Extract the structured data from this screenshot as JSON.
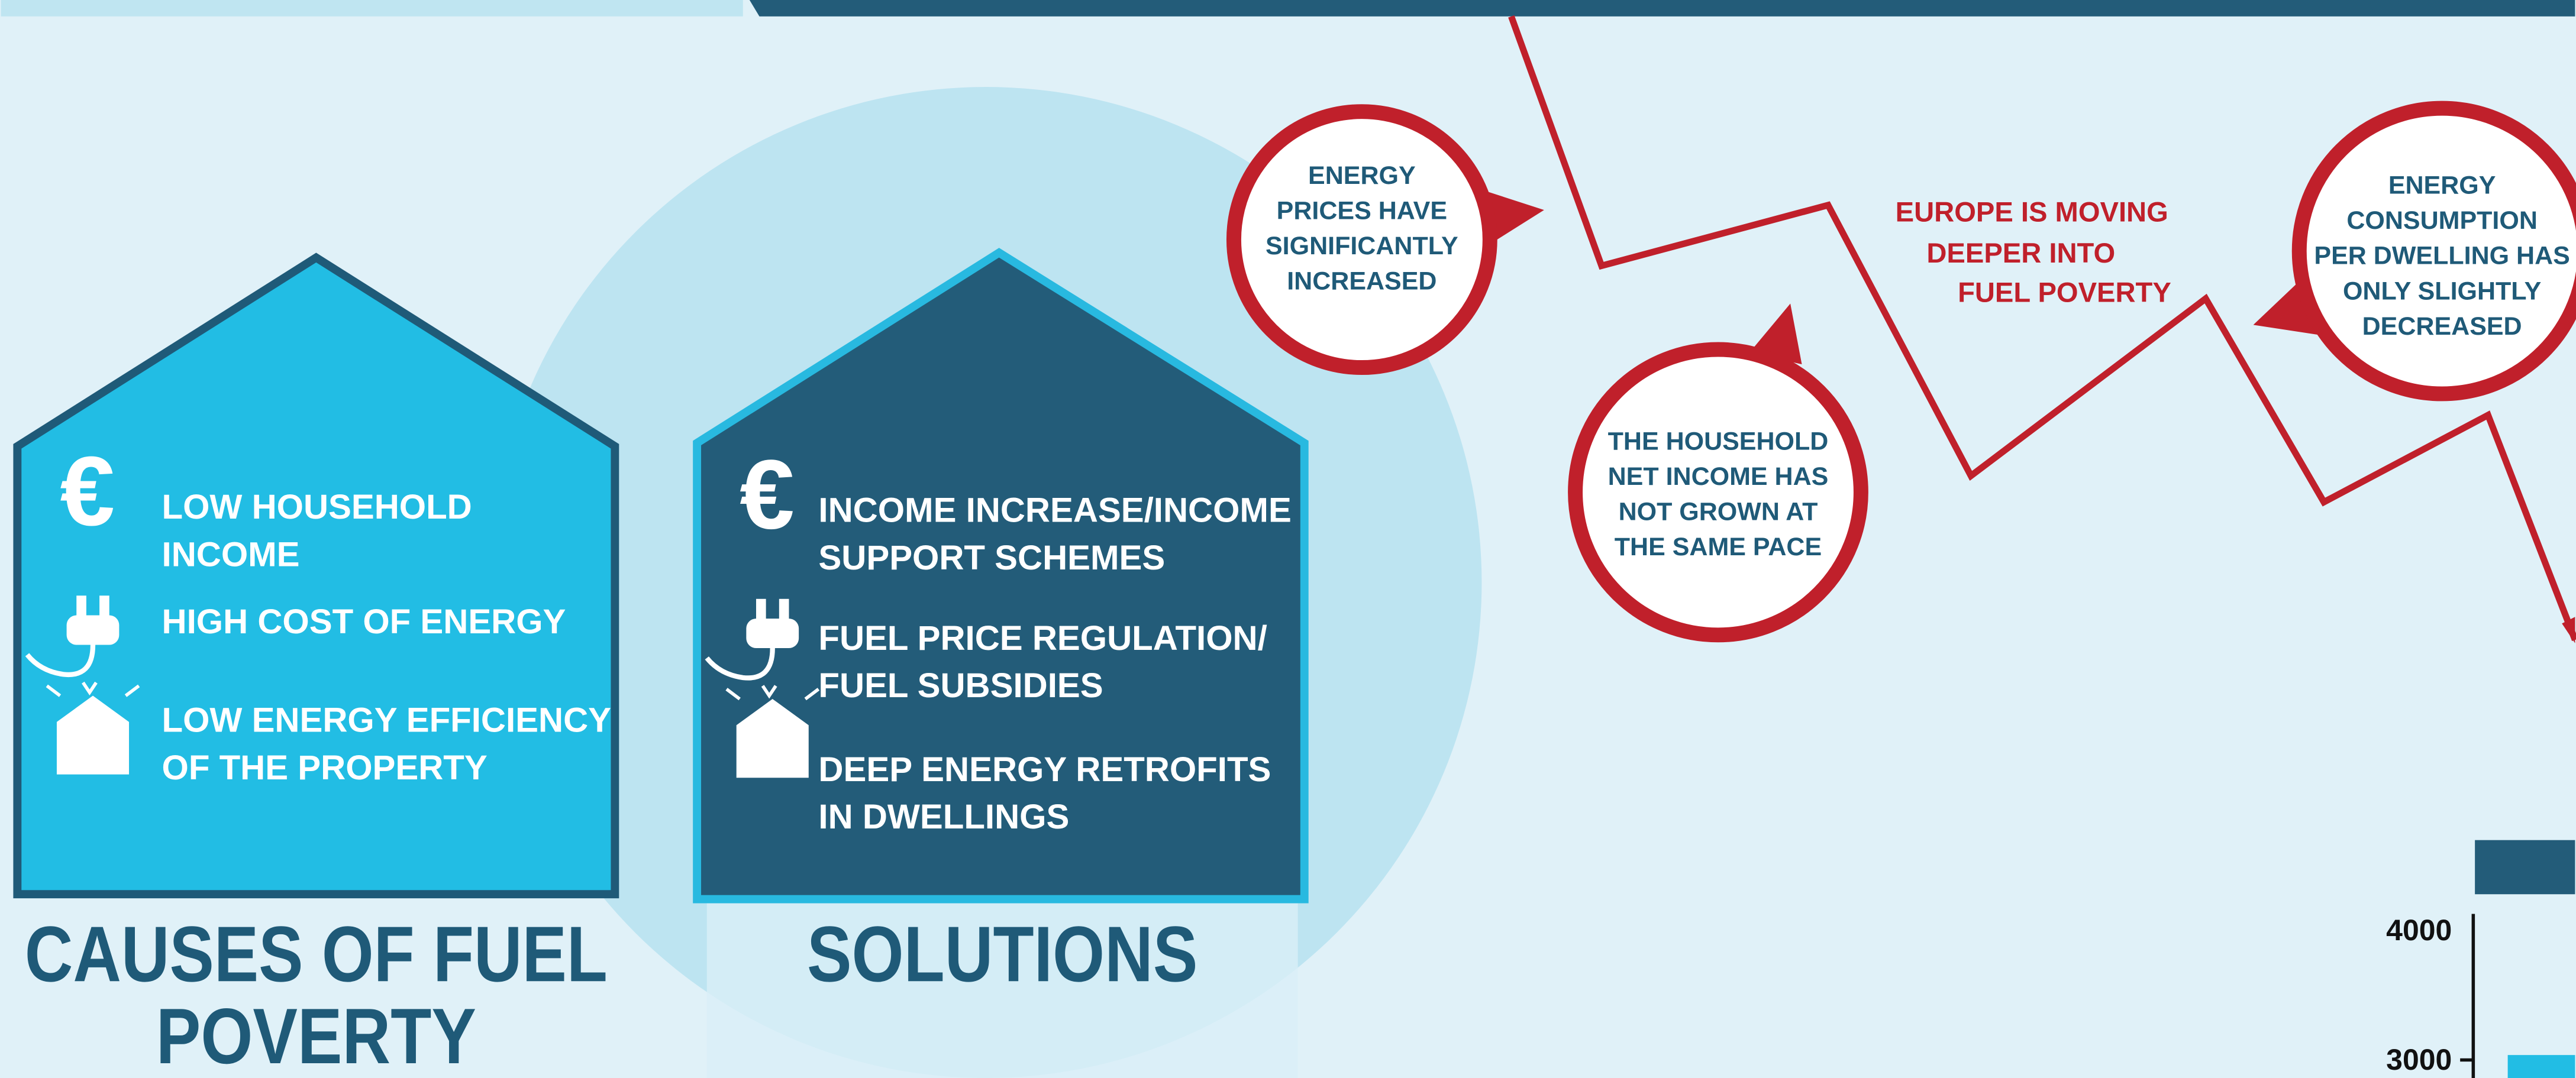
{
  "causes": {
    "title": [
      "CAUSES OF FUEL",
      "POVERTY"
    ],
    "items": [
      [
        "LOW HOUSEHOLD",
        "INCOME"
      ],
      [
        "HIGH COST OF ENERGY"
      ],
      [
        "LOW ENERGY EFFICIENCY",
        "OF THE PROPERTY"
      ]
    ]
  },
  "solutions": {
    "title": [
      "SOLUTIONS"
    ],
    "items": [
      [
        "INCOME INCREASE/INCOME",
        "SUPPORT SCHEMES"
      ],
      [
        "FUEL PRICE REGULATION/",
        "FUEL SUBSIDIES"
      ],
      [
        "DEEP ENERGY RETROFITS",
        "IN DWELLINGS"
      ]
    ]
  },
  "callouts": [
    [
      "ENERGY",
      "PRICES HAVE",
      "SIGNIFICANTLY",
      "INCREASED"
    ],
    [
      "THE HOUSEHOLD",
      "NET INCOME HAS",
      "NOT GROWN AT",
      "THE SAME PACE"
    ],
    [
      "ENERGY",
      "CONSUMPTION",
      "PER DWELLING HAS",
      "ONLY SLIGHTLY",
      "DECREASED"
    ]
  ],
  "trend_label": [
    "EUROPE IS MOVING",
    "DEEPER INTO",
    "FUEL POVERTY"
  ],
  "axis_labels": [
    "4000",
    "3000"
  ]
}
